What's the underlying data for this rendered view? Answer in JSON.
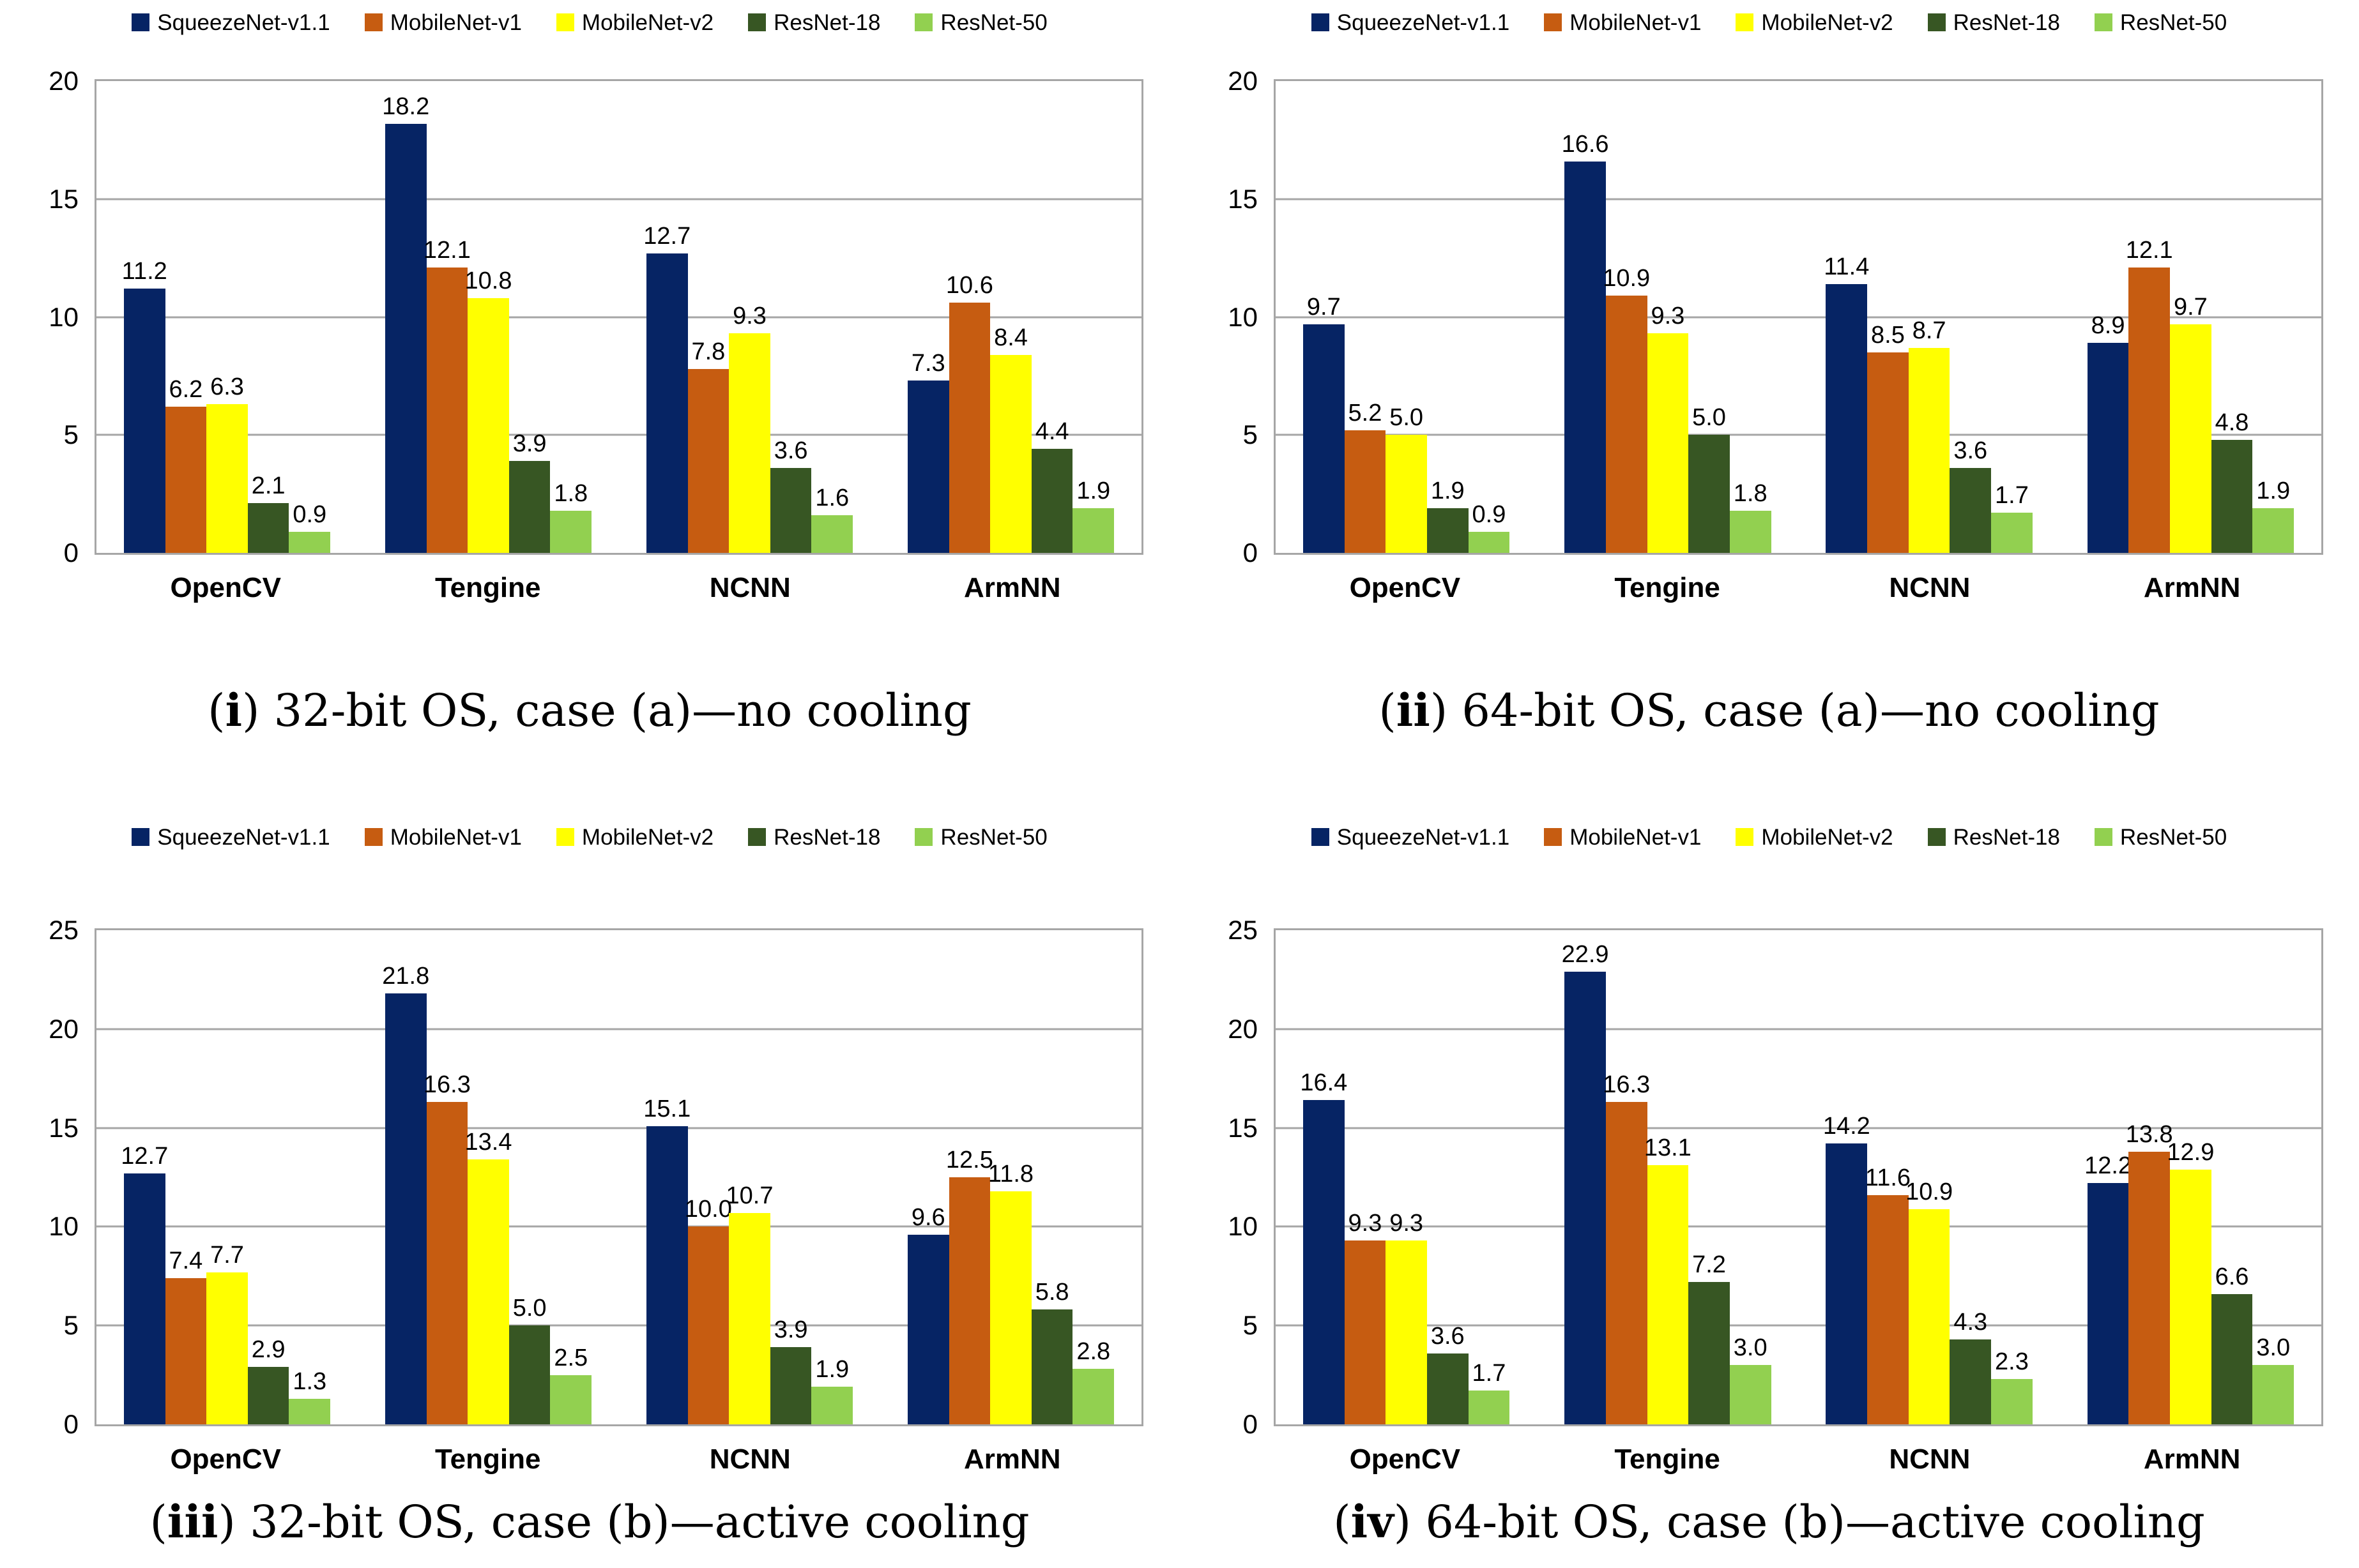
{
  "figure": {
    "background": "#FFFFFF",
    "grid_color": "#A6A6A6",
    "text_color": "#000000"
  },
  "chart_data": [
    {
      "type": "bar",
      "caption_index": "i",
      "caption_text": "32-bit OS, case (a)—no cooling",
      "legend_position": "top",
      "grid": true,
      "ylim": [
        0,
        20
      ],
      "yticks": [
        0,
        5,
        10,
        15,
        20
      ],
      "categories": [
        "OpenCV",
        "Tengine",
        "NCNN",
        "ArmNN"
      ],
      "series": [
        {
          "name": "SqueezeNet-v1.1",
          "color": "#062464",
          "values": [
            11.2,
            18.2,
            12.7,
            7.3
          ]
        },
        {
          "name": "MobileNet-v1",
          "color": "#C65C11",
          "values": [
            6.2,
            12.1,
            7.8,
            10.6
          ]
        },
        {
          "name": "MobileNet-v2",
          "color": "#FFFF00",
          "values": [
            6.3,
            10.8,
            9.3,
            8.4
          ]
        },
        {
          "name": "ResNet-18",
          "color": "#375623",
          "values": [
            2.1,
            3.9,
            3.6,
            4.4
          ]
        },
        {
          "name": "ResNet-50",
          "color": "#92D050",
          "values": [
            0.9,
            1.8,
            1.6,
            1.9
          ]
        }
      ]
    },
    {
      "type": "bar",
      "caption_index": "ii",
      "caption_text": "64-bit OS, case (a)—no cooling",
      "legend_position": "top",
      "grid": true,
      "ylim": [
        0,
        20
      ],
      "yticks": [
        0,
        5,
        10,
        15,
        20
      ],
      "categories": [
        "OpenCV",
        "Tengine",
        "NCNN",
        "ArmNN"
      ],
      "series": [
        {
          "name": "SqueezeNet-v1.1",
          "color": "#062464",
          "values": [
            9.7,
            16.6,
            11.4,
            8.9
          ]
        },
        {
          "name": "MobileNet-v1",
          "color": "#C65C11",
          "values": [
            5.2,
            10.9,
            8.5,
            12.1
          ]
        },
        {
          "name": "MobileNet-v2",
          "color": "#FFFF00",
          "values": [
            5.0,
            9.3,
            8.7,
            9.7
          ]
        },
        {
          "name": "ResNet-18",
          "color": "#375623",
          "values": [
            1.9,
            5.0,
            3.6,
            4.8
          ]
        },
        {
          "name": "ResNet-50",
          "color": "#92D050",
          "values": [
            0.9,
            1.8,
            1.7,
            1.9
          ]
        }
      ]
    },
    {
      "type": "bar",
      "caption_index": "iii",
      "caption_text": "32-bit OS, case (b)—active cooling",
      "legend_position": "top",
      "grid": true,
      "ylim": [
        0,
        25
      ],
      "yticks": [
        0,
        5,
        10,
        15,
        20,
        25
      ],
      "categories": [
        "OpenCV",
        "Tengine",
        "NCNN",
        "ArmNN"
      ],
      "series": [
        {
          "name": "SqueezeNet-v1.1",
          "color": "#062464",
          "values": [
            12.7,
            21.8,
            15.1,
            9.6
          ]
        },
        {
          "name": "MobileNet-v1",
          "color": "#C65C11",
          "values": [
            7.4,
            16.3,
            10.0,
            12.5
          ]
        },
        {
          "name": "MobileNet-v2",
          "color": "#FFFF00",
          "values": [
            7.7,
            13.4,
            10.7,
            11.8
          ]
        },
        {
          "name": "ResNet-18",
          "color": "#375623",
          "values": [
            2.9,
            5.0,
            3.9,
            5.8
          ]
        },
        {
          "name": "ResNet-50",
          "color": "#92D050",
          "values": [
            1.3,
            2.5,
            1.9,
            2.8
          ]
        }
      ]
    },
    {
      "type": "bar",
      "caption_index": "iv",
      "caption_text": "64-bit OS, case (b)—active cooling",
      "legend_position": "top",
      "grid": true,
      "ylim": [
        0,
        25
      ],
      "yticks": [
        0,
        5,
        10,
        15,
        20,
        25
      ],
      "categories": [
        "OpenCV",
        "Tengine",
        "NCNN",
        "ArmNN"
      ],
      "series": [
        {
          "name": "SqueezeNet-v1.1",
          "color": "#062464",
          "values": [
            16.4,
            22.9,
            14.2,
            12.2
          ]
        },
        {
          "name": "MobileNet-v1",
          "color": "#C65C11",
          "values": [
            9.3,
            16.3,
            11.6,
            13.8
          ]
        },
        {
          "name": "MobileNet-v2",
          "color": "#FFFF00",
          "values": [
            9.3,
            13.1,
            10.9,
            12.9
          ]
        },
        {
          "name": "ResNet-18",
          "color": "#375623",
          "values": [
            3.6,
            7.2,
            4.3,
            6.6
          ]
        },
        {
          "name": "ResNet-50",
          "color": "#92D050",
          "values": [
            1.7,
            3.0,
            2.3,
            3.0
          ]
        }
      ]
    }
  ]
}
